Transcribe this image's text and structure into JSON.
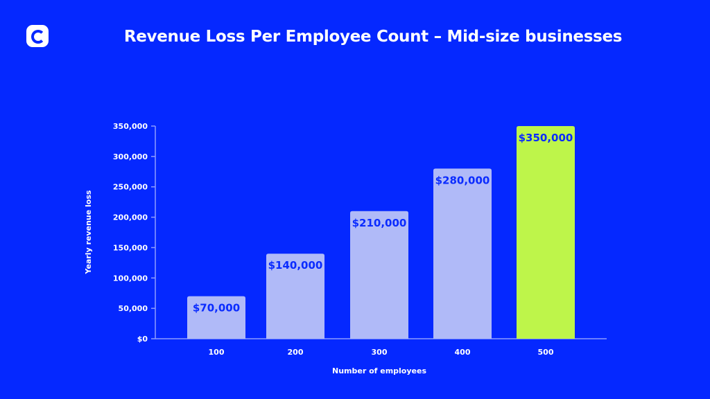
{
  "header": {
    "title": "Revenue Loss Per Employee Count – Mid-size businesses",
    "logo_icon": "c-logo-icon"
  },
  "colors": {
    "background": "#0528ff",
    "bar": "#b0baf8",
    "highlight_bar": "#bef54a",
    "label": "#0a2bff",
    "axis": "#8f9cff"
  },
  "chart_data": {
    "type": "bar",
    "title": "Revenue Loss Per Employee Count – Mid-size businesses",
    "xlabel": "Number of employees",
    "ylabel": "Yearly revenue loss",
    "categories": [
      "100",
      "200",
      "300",
      "400",
      "500"
    ],
    "values": [
      70000,
      140000,
      210000,
      280000,
      350000
    ],
    "data_labels": [
      "$70,000",
      "$140,000",
      "$210,000",
      "$280,000",
      "$350,000"
    ],
    "highlight_index": 4,
    "ylim": [
      0,
      350000
    ],
    "yticks": [
      0,
      50000,
      100000,
      150000,
      200000,
      250000,
      300000,
      350000
    ],
    "ytick_labels": [
      "$0",
      "50,000",
      "100,000",
      "150,000",
      "200,000",
      "250,000",
      "300,000",
      "350,000"
    ],
    "grid": false,
    "legend": "none"
  }
}
